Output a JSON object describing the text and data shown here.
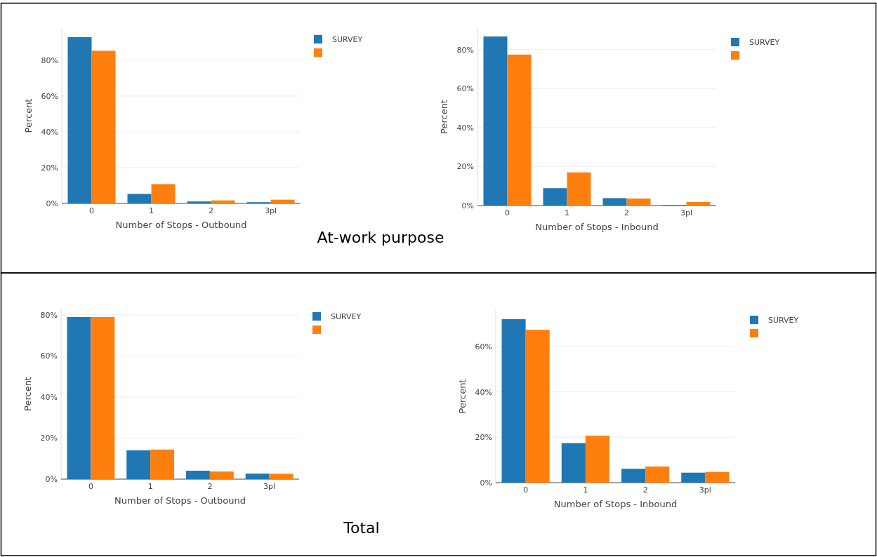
{
  "chart_data": [
    {
      "type": "bar",
      "xlabel": "Number of Stops - Outbound",
      "ylabel": "Percent",
      "categories": [
        "0",
        "1",
        "2",
        "3pl"
      ],
      "ylim": [
        0,
        98
      ],
      "yticks": [
        {
          "value": 0,
          "label": "0%"
        },
        {
          "value": 20,
          "label": "20%"
        },
        {
          "value": 40,
          "label": "40%"
        },
        {
          "value": 60,
          "label": "60%"
        },
        {
          "value": 80,
          "label": "80%"
        }
      ],
      "grid": "y",
      "legend": "top right",
      "annotations": [
        "At-work purpose"
      ],
      "series": [
        {
          "name": "SURVEY",
          "color": "#1f77b4",
          "values": [
            92.9,
            5.3,
            1.1,
            0.7
          ]
        },
        {
          "color": "#ff7f0e",
          "values": [
            85.3,
            10.8,
            1.7,
            2.1
          ]
        }
      ]
    },
    {
      "type": "bar",
      "xlabel": "Number of Stops - Inbound",
      "ylabel": "Percent",
      "categories": [
        "0",
        "1",
        "2",
        "3pl"
      ],
      "ylim": [
        0,
        91
      ],
      "yticks": [
        {
          "value": 0,
          "label": "0%"
        },
        {
          "value": 20,
          "label": "20%"
        },
        {
          "value": 40,
          "label": "40%"
        },
        {
          "value": 60,
          "label": "60%"
        },
        {
          "value": 80,
          "label": "80%"
        }
      ],
      "grid": "y",
      "legend": "top right",
      "series": [
        {
          "name": "SURVEY",
          "color": "#1f77b4",
          "values": [
            86.7,
            8.9,
            3.8,
            0.3
          ]
        },
        {
          "color": "#ff7f0e",
          "values": [
            77.4,
            17.0,
            3.6,
            1.8
          ]
        }
      ]
    },
    {
      "type": "bar",
      "xlabel": "Number of Stops - Outbound",
      "ylabel": "Percent",
      "categories": [
        "0",
        "1",
        "2",
        "3pl"
      ],
      "ylim": [
        0,
        83
      ],
      "yticks": [
        {
          "value": 0,
          "label": "0%"
        },
        {
          "value": 20,
          "label": "20%"
        },
        {
          "value": 40,
          "label": "40%"
        },
        {
          "value": 60,
          "label": "60%"
        },
        {
          "value": 80,
          "label": "80%"
        }
      ],
      "grid": "y",
      "legend": "top right",
      "annotations": [
        "Total"
      ],
      "series": [
        {
          "name": "SURVEY",
          "color": "#1f77b4",
          "values": [
            78.9,
            14.0,
            4.1,
            2.7
          ]
        },
        {
          "color": "#ff7f0e",
          "values": [
            78.9,
            14.4,
            3.7,
            2.6
          ]
        }
      ]
    },
    {
      "type": "bar",
      "xlabel": "Number of Stops - Inbound",
      "ylabel": "Percent",
      "categories": [
        "0",
        "1",
        "2",
        "3pl"
      ],
      "ylim": [
        0,
        76
      ],
      "yticks": [
        {
          "value": 0,
          "label": "0%"
        },
        {
          "value": 20,
          "label": "20%"
        },
        {
          "value": 40,
          "label": "40%"
        },
        {
          "value": 60,
          "label": "60%"
        }
      ],
      "grid": "y",
      "legend": "top right",
      "series": [
        {
          "name": "SURVEY",
          "color": "#1f77b4",
          "values": [
            72.0,
            17.4,
            6.1,
            4.4
          ]
        },
        {
          "color": "#ff7f0e",
          "values": [
            67.3,
            20.7,
            7.1,
            4.7
          ]
        }
      ]
    }
  ]
}
